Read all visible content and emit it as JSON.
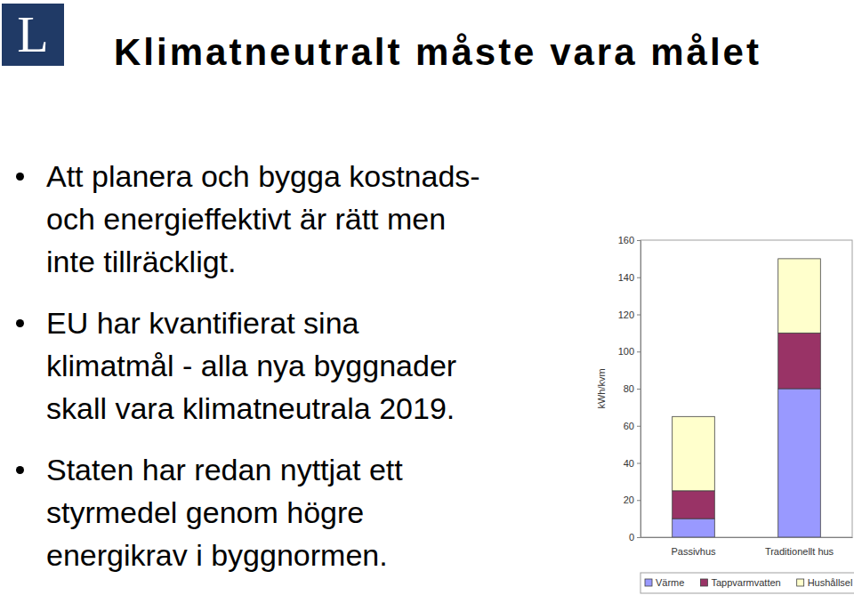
{
  "slide": {
    "logo": "L",
    "title": "Klimatneutralt måste vara målet",
    "bullets": [
      [
        "Att planera och bygga kostnads-",
        "och energieffektivt är rätt men",
        "inte tillräckligt."
      ],
      [
        "EU har kvantifierat sina",
        "klimatmål - alla nya byggnader",
        "skall vara klimatneutrala 2019."
      ],
      [
        "Staten har redan nyttjat ett",
        "styrmedel genom högre",
        "energikrav i byggnormen."
      ]
    ]
  },
  "chart_data": {
    "type": "bar",
    "stacked": true,
    "ylabel": "kWh/kvm",
    "categories": [
      "Passivhus",
      "Traditionellt hus"
    ],
    "series": [
      {
        "name": "Värme",
        "color": "#9999ff",
        "values": [
          10,
          80
        ]
      },
      {
        "name": "Tappvarmvatten",
        "color": "#993366",
        "values": [
          15,
          30
        ]
      },
      {
        "name": "Hushållsel",
        "color": "#ffffcc",
        "values": [
          40,
          40
        ]
      }
    ],
    "ylim": [
      0,
      160
    ],
    "yticks": [
      0,
      20,
      40,
      60,
      80,
      100,
      120,
      140,
      160
    ],
    "grid": false,
    "legend": "bottom"
  }
}
